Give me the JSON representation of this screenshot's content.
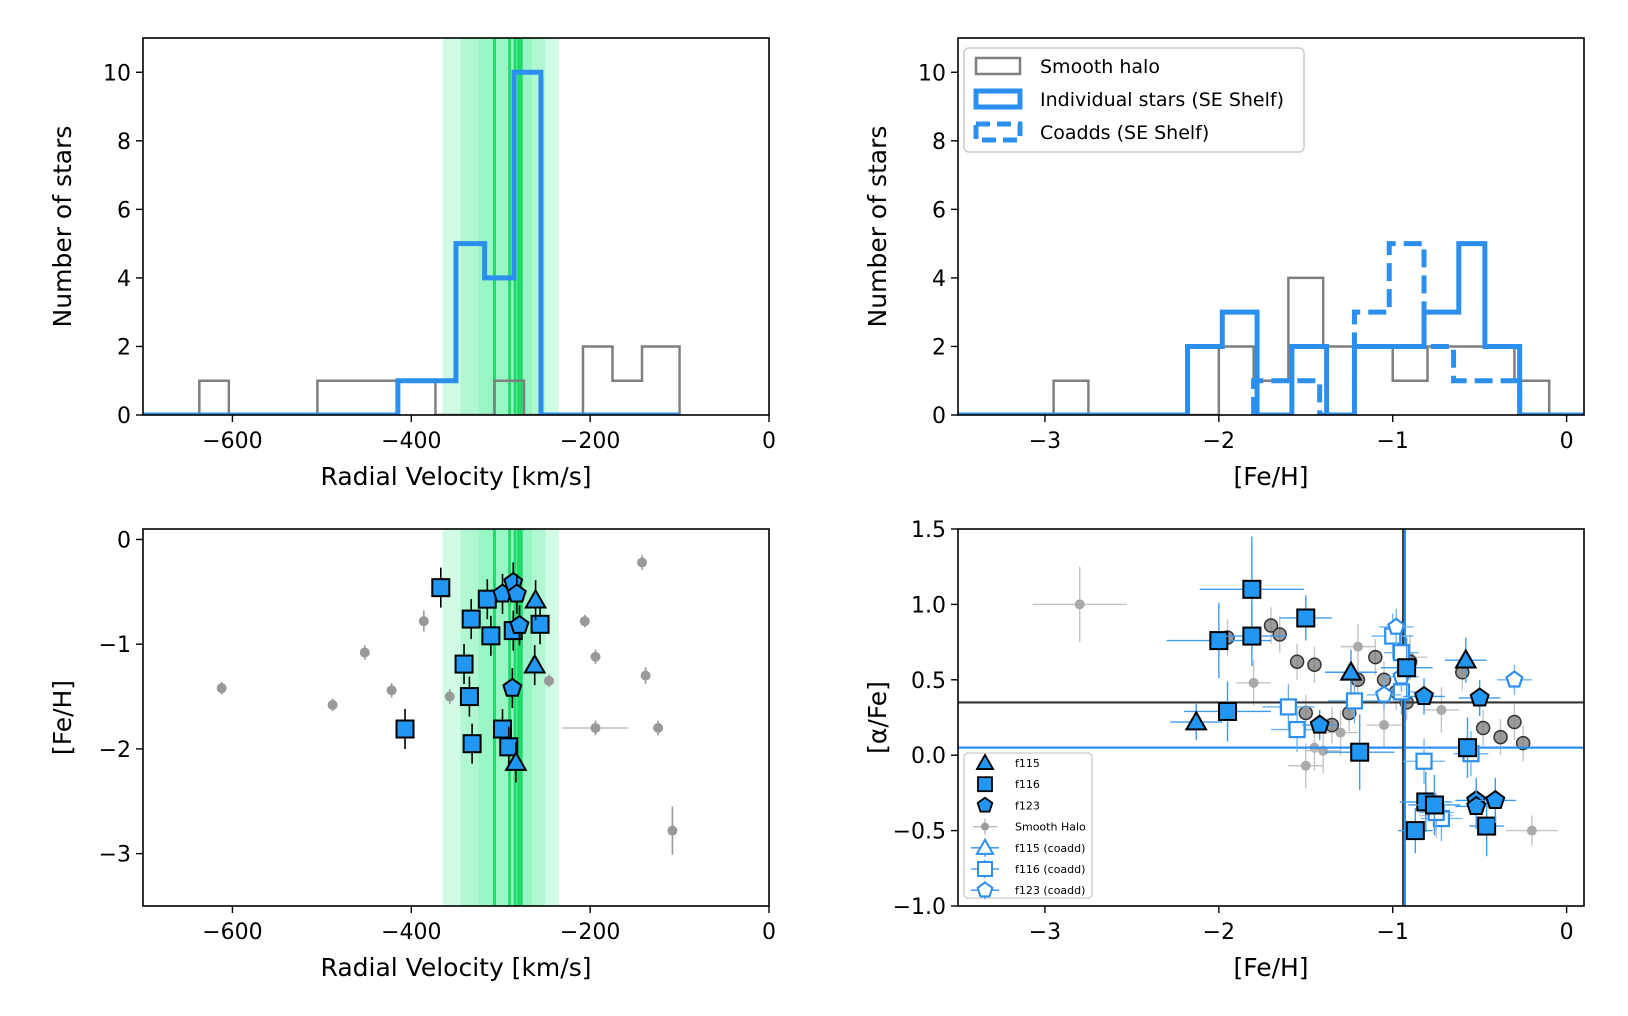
{
  "colors": {
    "blue": "#2b8ff0",
    "gray": "#7f7f7f",
    "green": "#1fdb6a",
    "bandGreen": "#5ff0a0",
    "marker": "#2196f3",
    "black": "#000000"
  },
  "chart_data": [
    {
      "id": "p1",
      "type": "histogram",
      "xlabel": "Radial Velocity [km/s]",
      "ylabel": "Number of stars",
      "xlim": [
        -700,
        0
      ],
      "ylim": [
        0,
        11
      ],
      "xticks": [
        -600,
        -400,
        -200,
        0
      ],
      "yticks": [
        0,
        2,
        4,
        6,
        8,
        10
      ],
      "bands": [
        {
          "x0": -365,
          "x1": -235
        },
        {
          "x0": -345,
          "x1": -250
        },
        {
          "x0": -325,
          "x1": -265
        }
      ],
      "vlines": [
        -307,
        -290,
        -284,
        -280,
        -277
      ],
      "series": [
        {
          "name": "Smooth halo",
          "style": "gray",
          "edges": [
            -700,
            -637,
            -604,
            -505,
            -439,
            -373,
            -340,
            -307,
            -274,
            -208,
            -175,
            -142,
            -100
          ],
          "counts": [
            0,
            1,
            0,
            1,
            1,
            0,
            0,
            1,
            0,
            2,
            1,
            2
          ]
        },
        {
          "name": "Individual stars (SE Shelf)",
          "style": "blue",
          "edges": [
            -700,
            -415,
            -350,
            -318,
            -285,
            -255,
            -100
          ],
          "counts": [
            0,
            1,
            5,
            4,
            10,
            0
          ]
        }
      ]
    },
    {
      "id": "p2",
      "type": "histogram",
      "xlabel": "[Fe/H]",
      "ylabel": "Number of stars",
      "xlim": [
        -3.5,
        0.1
      ],
      "ylim": [
        0,
        11
      ],
      "xticks": [
        -3,
        -2,
        -1,
        0
      ],
      "yticks": [
        0,
        2,
        4,
        6,
        8,
        10
      ],
      "legend": [
        {
          "label": "Smooth halo",
          "style": "gray"
        },
        {
          "label": "Individual stars (SE Shelf)",
          "style": "blue"
        },
        {
          "label": "Coadds (SE Shelf)",
          "style": "dash"
        }
      ],
      "series": [
        {
          "name": "Smooth halo",
          "style": "gray",
          "edges": [
            -2.95,
            -2.75,
            -2.0,
            -1.8,
            -1.6,
            -1.4,
            -1.0,
            -0.8,
            -0.65,
            -0.3,
            -0.1
          ],
          "counts": [
            1,
            0,
            2,
            1,
            4,
            2,
            1,
            2,
            2,
            1
          ]
        },
        {
          "name": "Individual stars (SE Shelf)",
          "style": "blue",
          "edges": [
            -3.5,
            -2.18,
            -1.98,
            -1.78,
            -1.58,
            -1.38,
            -1.22,
            -0.82,
            -0.62,
            -0.47,
            -0.27,
            0.1
          ],
          "counts": [
            0,
            2,
            3,
            0,
            2,
            0,
            2,
            3,
            5,
            2,
            0
          ]
        },
        {
          "name": "Coadds (SE Shelf)",
          "style": "dash",
          "edges": [
            -1.8,
            -1.6,
            -1.42,
            -1.22,
            -1.02,
            -0.82,
            -0.65,
            -0.45,
            -0.27
          ],
          "counts": [
            1,
            1,
            0,
            3,
            5,
            2,
            1,
            1
          ]
        }
      ]
    },
    {
      "id": "p3",
      "type": "scatter",
      "xlabel": "Radial Velocity [km/s]",
      "ylabel": "[Fe/H]",
      "xlim": [
        -700,
        0
      ],
      "ylim": [
        -3.5,
        0.1
      ],
      "xticks": [
        -600,
        -400,
        -200,
        0
      ],
      "yticks": [
        0,
        -1,
        -2,
        -3
      ],
      "bands": [
        {
          "x0": -365,
          "x1": -235
        },
        {
          "x0": -345,
          "x1": -250
        },
        {
          "x0": -325,
          "x1": -265
        }
      ],
      "vlines": [
        -307,
        -290,
        -284,
        -280,
        -277
      ],
      "smooth_halo": [
        [
          -612,
          -1.42,
          0.06
        ],
        [
          -488,
          -1.58,
          0.06
        ],
        [
          -452,
          -1.08,
          0.07
        ],
        [
          -422,
          -1.44,
          0.07
        ],
        [
          -386,
          -0.78,
          0.1
        ],
        [
          -357,
          -1.5,
          0.07
        ],
        [
          -246,
          -1.35,
          0.06
        ],
        [
          -206,
          -0.78,
          0.06
        ],
        [
          -194,
          -1.12,
          0.07
        ],
        [
          -142,
          -0.22,
          0.07
        ],
        [
          -138,
          -1.3,
          0.08
        ],
        [
          -124,
          -1.8,
          0.07
        ],
        [
          -108,
          -2.78,
          0.23
        ],
        [
          -194,
          -1.8,
          0.07,
          37
        ]
      ],
      "f115": [
        [
          -283,
          -2.13
        ],
        [
          -262,
          -1.2
        ],
        [
          -261,
          -0.58
        ]
      ],
      "f116": [
        [
          -367,
          -0.46
        ],
        [
          -407,
          -1.81
        ],
        [
          -341,
          -1.19
        ],
        [
          -335,
          -1.5
        ],
        [
          -333,
          -0.76
        ],
        [
          -332,
          -1.95
        ],
        [
          -315,
          -0.57
        ],
        [
          -311,
          -0.92
        ],
        [
          -298,
          -1.81
        ],
        [
          -291,
          -1.98
        ],
        [
          -286,
          -0.87
        ],
        [
          -256,
          -0.81
        ]
      ],
      "f123": [
        [
          -298,
          -0.52
        ],
        [
          -286,
          -0.41
        ],
        [
          -282,
          -0.52
        ],
        [
          -279,
          -0.82
        ],
        [
          -287,
          -1.42
        ]
      ]
    },
    {
      "id": "p4",
      "type": "scatter",
      "xlabel": "[Fe/H]",
      "ylabel": "[α/Fe]",
      "xlim": [
        -3.5,
        0.1
      ],
      "ylim": [
        -1.0,
        1.5
      ],
      "xticks": [
        -3,
        -2,
        -1,
        0
      ],
      "yticks": [
        1.5,
        1.0,
        0.5,
        0.0,
        -0.5,
        -1.0
      ],
      "hline_black": 0.35,
      "hline_blue": 0.05,
      "vline_black": -0.94,
      "vline_blue": -0.93,
      "legend": [
        {
          "label": "f115",
          "marker": "tri"
        },
        {
          "label": "f116",
          "marker": "sq"
        },
        {
          "label": "f123",
          "marker": "pent"
        },
        {
          "label": "Smooth Halo",
          "marker": "dot"
        },
        {
          "label": "f115 (coadd)",
          "marker": "tri-o"
        },
        {
          "label": "f116 (coadd)",
          "marker": "sq-o"
        },
        {
          "label": "f123 (coadd)",
          "marker": "pent-o"
        }
      ],
      "smooth_gray": [
        [
          -2.8,
          1.0,
          0.27,
          0.25
        ],
        [
          -1.5,
          -0.07,
          0.1,
          0.15
        ],
        [
          -1.45,
          0.05,
          0.1,
          0.15
        ],
        [
          -1.4,
          0.03,
          0.1,
          0.15
        ],
        [
          -1.8,
          0.48,
          0.1,
          0.15
        ],
        [
          -1.2,
          0.72,
          0.1,
          0.15
        ],
        [
          -0.95,
          0.58,
          0.1,
          0.15
        ],
        [
          -1.05,
          0.2,
          0.1,
          0.15
        ],
        [
          -0.9,
          0.65,
          0.1,
          0.15
        ],
        [
          -0.72,
          0.3,
          0.1,
          0.15
        ],
        [
          -0.2,
          -0.5,
          0.15,
          0.1
        ],
        [
          -0.75,
          -0.4,
          0.1,
          0.15
        ],
        [
          -1.3,
          0.15,
          0.1,
          0.15
        ]
      ],
      "halo_circles": [
        [
          -1.95,
          0.78
        ],
        [
          -1.7,
          0.86
        ],
        [
          -1.65,
          0.8
        ],
        [
          -1.55,
          0.62
        ],
        [
          -1.45,
          0.6
        ],
        [
          -1.5,
          0.28
        ],
        [
          -1.35,
          0.2
        ],
        [
          -1.25,
          0.28
        ],
        [
          -1.2,
          0.5
        ],
        [
          -1.1,
          0.65
        ],
        [
          -1.05,
          0.5
        ],
        [
          -0.98,
          0.42
        ],
        [
          -0.95,
          0.7
        ],
        [
          -0.92,
          0.35
        ],
        [
          -0.9,
          0.62
        ],
        [
          -0.6,
          0.55
        ],
        [
          -0.48,
          0.18
        ],
        [
          -0.38,
          0.12
        ],
        [
          -0.3,
          0.22
        ],
        [
          -0.25,
          0.08
        ]
      ],
      "f115": [
        [
          -2.13,
          0.22,
          0.15,
          0.12
        ],
        [
          -1.24,
          0.55,
          0.15,
          0.15
        ],
        [
          -0.58,
          0.63,
          0.12,
          0.15
        ]
      ],
      "f116": [
        [
          -1.81,
          1.1,
          0.3,
          0.35
        ],
        [
          -2.0,
          0.76,
          0.3,
          0.25
        ],
        [
          -1.95,
          0.29,
          0.25,
          0.2
        ],
        [
          -1.81,
          0.79,
          0.2,
          0.2
        ],
        [
          -1.5,
          0.91,
          0.15,
          0.15
        ],
        [
          -1.19,
          0.02,
          0.2,
          0.25
        ],
        [
          -0.92,
          0.58,
          0.15,
          0.2
        ],
        [
          -0.57,
          0.05,
          0.2,
          0.2
        ],
        [
          -0.81,
          -0.31,
          0.15,
          0.2
        ],
        [
          -0.76,
          -0.33,
          0.15,
          0.2
        ],
        [
          -0.87,
          -0.5,
          0.1,
          0.15
        ],
        [
          -0.46,
          -0.47,
          0.1,
          0.2
        ]
      ],
      "f123": [
        [
          -1.42,
          0.2,
          0.1,
          0.1
        ],
        [
          -0.82,
          0.39,
          0.12,
          0.12
        ],
        [
          -0.52,
          -0.3,
          0.12,
          0.15
        ],
        [
          -0.52,
          -0.34,
          0.12,
          0.15
        ],
        [
          -0.41,
          -0.3,
          0.12,
          0.15
        ],
        [
          -0.5,
          0.38,
          0.12,
          0.12
        ]
      ],
      "f116_coadd": [
        [
          -1.6,
          0.32,
          0.15,
          0.15
        ],
        [
          -1.55,
          0.17,
          0.15,
          0.15
        ],
        [
          -1.22,
          0.36,
          0.15,
          0.15
        ],
        [
          -1.0,
          0.79,
          0.12,
          0.15
        ],
        [
          -0.95,
          0.42,
          0.12,
          0.15
        ],
        [
          -0.82,
          -0.04,
          0.12,
          0.15
        ],
        [
          -0.72,
          -0.42,
          0.12,
          0.15
        ],
        [
          -0.55,
          0.01,
          0.1,
          0.15
        ],
        [
          -0.95,
          0.68,
          0.1,
          0.15
        ],
        [
          -0.75,
          -0.38,
          0.1,
          0.12
        ]
      ],
      "f123_coadd": [
        [
          -0.98,
          0.85,
          0.1,
          0.12
        ],
        [
          -0.95,
          0.52,
          0.1,
          0.1
        ],
        [
          -1.05,
          0.4,
          0.1,
          0.1
        ],
        [
          -0.3,
          0.5,
          0.1,
          0.1
        ]
      ]
    }
  ]
}
